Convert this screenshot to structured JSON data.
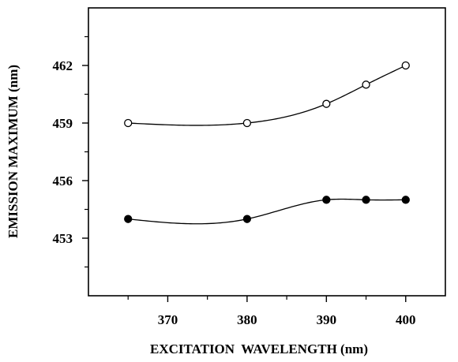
{
  "chart_data": {
    "type": "scatter",
    "xlabel": "EXCITATION  WAVELENGTH (nm)",
    "ylabel": "EMISSION MAXIMUM (nm)",
    "xlim": [
      360,
      405
    ],
    "ylim": [
      450,
      465
    ],
    "x_ticks": [
      370,
      380,
      390,
      400
    ],
    "x_minor_ticks": [
      365,
      375,
      385,
      395
    ],
    "y_ticks": [
      453,
      456,
      459,
      462
    ],
    "grid": false,
    "series": [
      {
        "marker": "open-circle",
        "x": [
          365,
          380,
          390,
          395,
          400
        ],
        "y": [
          459,
          459,
          460,
          461,
          462
        ],
        "fit_curve": true
      },
      {
        "marker": "filled-circle",
        "x": [
          365,
          380,
          390,
          395,
          400
        ],
        "y": [
          454,
          454,
          455,
          455,
          455
        ],
        "fit_curve": true
      }
    ]
  }
}
